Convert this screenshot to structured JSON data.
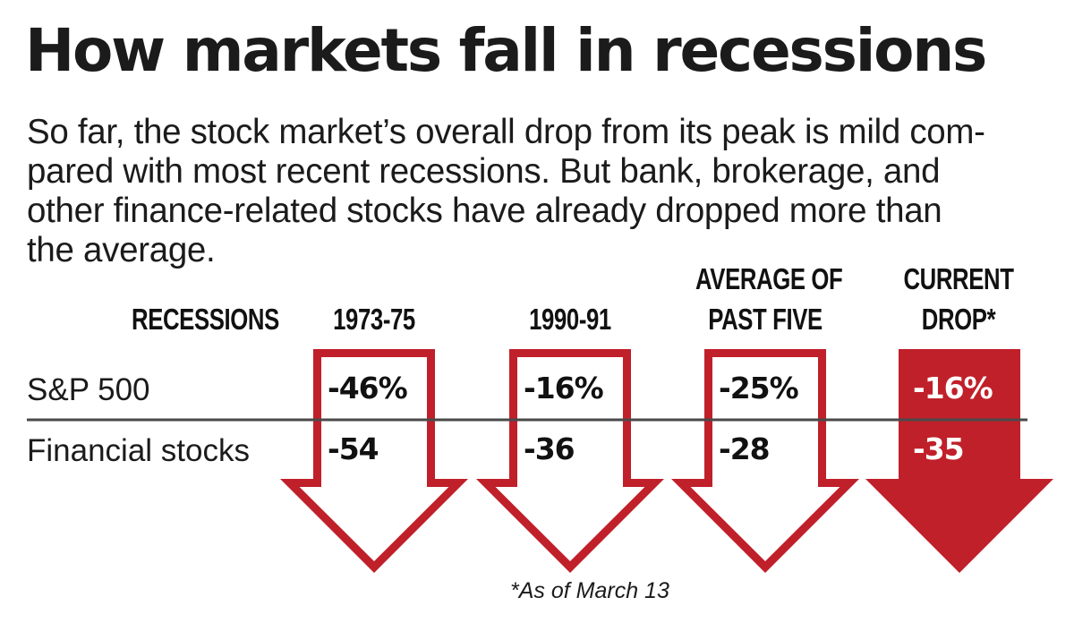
{
  "title": "How markets fall in recessions",
  "intro_lines": [
    "So far, the stock market’s overall drop from its peak is mild com-",
    "pared with most recent recessions. But bank, brokerage, and",
    "other finance-related stocks have already dropped more than",
    "the average."
  ],
  "colors": {
    "accent": "#c0202a",
    "text": "#1b1b1b",
    "rule": "#4a4a4a"
  },
  "chart_data": {
    "type": "table",
    "title": "How markets fall in recessions",
    "row_header": "RECESSIONS",
    "columns": [
      {
        "label_lines": [
          "1973-75"
        ],
        "style": "outline"
      },
      {
        "label_lines": [
          "1990-91"
        ],
        "style": "outline"
      },
      {
        "label_lines": [
          "AVERAGE OF",
          "PAST FIVE"
        ],
        "style": "outline"
      },
      {
        "label_lines": [
          "CURRENT",
          "DROP*"
        ],
        "style": "filled"
      }
    ],
    "rows": [
      {
        "label": "S&P 500",
        "values": [
          -46,
          -16,
          -25,
          -16
        ],
        "display": [
          "-46%",
          "-16%",
          "-25%",
          "-16%"
        ]
      },
      {
        "label": "Financial stocks",
        "values": [
          -54,
          -36,
          -28,
          -35
        ],
        "display": [
          "-54",
          "-36",
          "-28",
          "-35"
        ]
      }
    ],
    "unit": "%",
    "footnote": "*As of March 13"
  }
}
